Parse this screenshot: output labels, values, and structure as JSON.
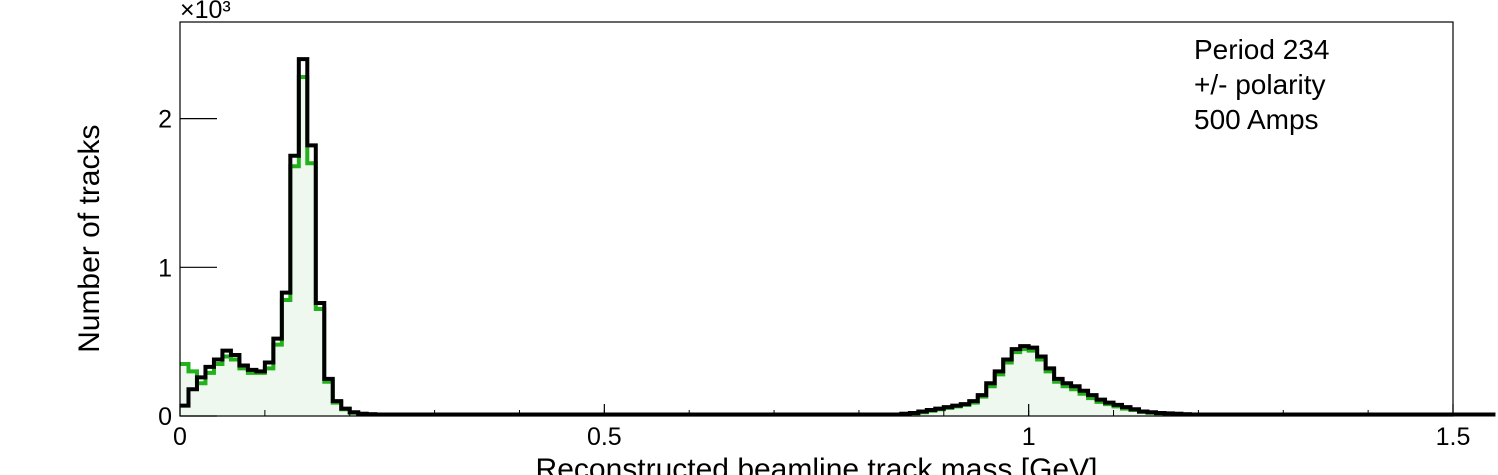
{
  "chart_data": {
    "type": "histogram",
    "title": "",
    "xlabel": "Reconstructed beamline track mass [GeV]",
    "ylabel": "Number of tracks",
    "y_multiplier_label": "×10³",
    "xlim": [
      0,
      1.5
    ],
    "ylim": [
      0,
      2650
    ],
    "x_ticks": [
      {
        "value": 0,
        "label": "0"
      },
      {
        "value": 0.5,
        "label": "0.5"
      },
      {
        "value": 1,
        "label": "1"
      },
      {
        "value": 1.5,
        "label": "1.5"
      }
    ],
    "y_ticks": [
      {
        "value": 0,
        "label": "0"
      },
      {
        "value": 1000,
        "label": "1"
      },
      {
        "value": 2000,
        "label": "2"
      }
    ],
    "grid": false,
    "bin_width": 0.01,
    "annotation_lines": [
      "Period 234",
      "+/- polarity",
      "500 Amps"
    ],
    "colors": {
      "black_series": "#000000",
      "green_series": "#22b11a",
      "green_fill": "#eef8ee"
    },
    "series": [
      {
        "values": [
          70,
          180,
          260,
          330,
          380,
          440,
          410,
          340,
          310,
          300,
          360,
          520,
          830,
          1750,
          2400,
          1820,
          760,
          250,
          100,
          50,
          25,
          15,
          12,
          10,
          10,
          10,
          10,
          10,
          10,
          10,
          10,
          10,
          10,
          10,
          10,
          10,
          10,
          10,
          10,
          10,
          10,
          10,
          10,
          10,
          10,
          10,
          10,
          10,
          10,
          10,
          10,
          10,
          10,
          10,
          10,
          10,
          10,
          10,
          10,
          10,
          10,
          10,
          10,
          10,
          10,
          10,
          10,
          10,
          10,
          10,
          10,
          10,
          10,
          10,
          10,
          10,
          10,
          10,
          10,
          10,
          10,
          10,
          10,
          10,
          10,
          15,
          20,
          30,
          40,
          50,
          60,
          70,
          80,
          100,
          140,
          220,
          300,
          380,
          450,
          470,
          460,
          400,
          320,
          250,
          220,
          200,
          170,
          140,
          110,
          90,
          75,
          60,
          45,
          30,
          25,
          20,
          18,
          15,
          12,
          10,
          10,
          10,
          10,
          10,
          10,
          10,
          10,
          10,
          10,
          10,
          10,
          10,
          10,
          10,
          10,
          10,
          10,
          10,
          10,
          10,
          10,
          10,
          10,
          10,
          10,
          10,
          10,
          10,
          10,
          10,
          10,
          10,
          10,
          10,
          10
        ]
      },
      {
        "values": [
          350,
          300,
          220,
          290,
          350,
          400,
          380,
          320,
          290,
          290,
          320,
          480,
          780,
          1680,
          2280,
          1700,
          720,
          230,
          90,
          45,
          22,
          14,
          12,
          10,
          10,
          10,
          10,
          10,
          10,
          10,
          10,
          10,
          10,
          10,
          10,
          10,
          10,
          10,
          10,
          10,
          10,
          10,
          10,
          10,
          10,
          10,
          10,
          10,
          10,
          10,
          10,
          10,
          10,
          10,
          10,
          10,
          10,
          10,
          10,
          10,
          10,
          10,
          10,
          10,
          10,
          10,
          10,
          10,
          10,
          10,
          10,
          10,
          10,
          10,
          10,
          10,
          10,
          10,
          10,
          10,
          10,
          10,
          10,
          10,
          10,
          14,
          18,
          25,
          35,
          45,
          55,
          65,
          75,
          90,
          130,
          200,
          280,
          360,
          430,
          450,
          440,
          380,
          300,
          230,
          200,
          180,
          150,
          120,
          95,
          80,
          65,
          50,
          40,
          28,
          22,
          18,
          16,
          14,
          12,
          10,
          10,
          10,
          10,
          10,
          10,
          10,
          10,
          10,
          10,
          10,
          10,
          10,
          10,
          10,
          10,
          10,
          10,
          10,
          10,
          10,
          10,
          10,
          10,
          10,
          10,
          10,
          10,
          10,
          10,
          10,
          10,
          10,
          10,
          10,
          10
        ]
      }
    ]
  }
}
